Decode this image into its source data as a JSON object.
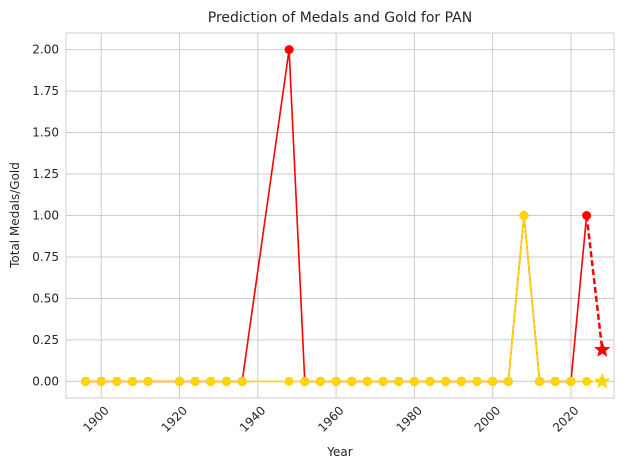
{
  "chart_data": {
    "type": "line",
    "title": "Prediction of Medals and Gold for PAN",
    "xlabel": "Year",
    "ylabel": "Total Medals/Gold",
    "xlim": [
      1891,
      2031
    ],
    "ylim": [
      -0.1,
      2.1
    ],
    "x_ticks": [
      1900,
      1920,
      1940,
      1960,
      1980,
      2000,
      2020
    ],
    "y_ticks": [
      0.0,
      0.25,
      0.5,
      0.75,
      1.0,
      1.25,
      1.5,
      1.75,
      2.0
    ],
    "y_tick_labels": [
      "0.00",
      "0.25",
      "0.50",
      "0.75",
      "1.00",
      "1.25",
      "1.50",
      "1.75",
      "2.00"
    ],
    "grid": true,
    "series": [
      {
        "role": "total-medals",
        "color": "#ff0000",
        "marker": "circle",
        "line": "solid",
        "x": [
          1896,
          1900,
          1904,
          1908,
          1912,
          1920,
          1924,
          1928,
          1932,
          1936,
          1948,
          1952,
          1956,
          1960,
          1964,
          1968,
          1972,
          1976,
          1980,
          1984,
          1988,
          1992,
          1996,
          2000,
          2004,
          2008,
          2012,
          2016,
          2020,
          2024
        ],
        "y": [
          0,
          0,
          0,
          0,
          0,
          0,
          0,
          0,
          0,
          0,
          2,
          0,
          0,
          0,
          0,
          0,
          0,
          0,
          0,
          0,
          0,
          0,
          0,
          0,
          0,
          1,
          0,
          0,
          0,
          1
        ]
      },
      {
        "role": "total-medals-prediction",
        "color": "#ff0000",
        "marker": "star",
        "line": "dashed",
        "x": [
          2024,
          2028
        ],
        "y": [
          1,
          0.19
        ]
      },
      {
        "role": "gold",
        "color": "#ffd700",
        "marker": "circle",
        "line": "solid",
        "x": [
          1896,
          1900,
          1904,
          1908,
          1912,
          1920,
          1924,
          1928,
          1932,
          1936,
          1948,
          1952,
          1956,
          1960,
          1964,
          1968,
          1972,
          1976,
          1980,
          1984,
          1988,
          1992,
          1996,
          2000,
          2004,
          2008,
          2012,
          2016,
          2020,
          2024
        ],
        "y": [
          0,
          0,
          0,
          0,
          0,
          0,
          0,
          0,
          0,
          0,
          0,
          0,
          0,
          0,
          0,
          0,
          0,
          0,
          0,
          0,
          0,
          0,
          0,
          0,
          0,
          1,
          0,
          0,
          0,
          0
        ]
      },
      {
        "role": "gold-prediction",
        "color": "#ffd700",
        "marker": "star",
        "line": "dashed",
        "x": [
          2024,
          2028
        ],
        "y": [
          0,
          0.0
        ]
      }
    ]
  }
}
